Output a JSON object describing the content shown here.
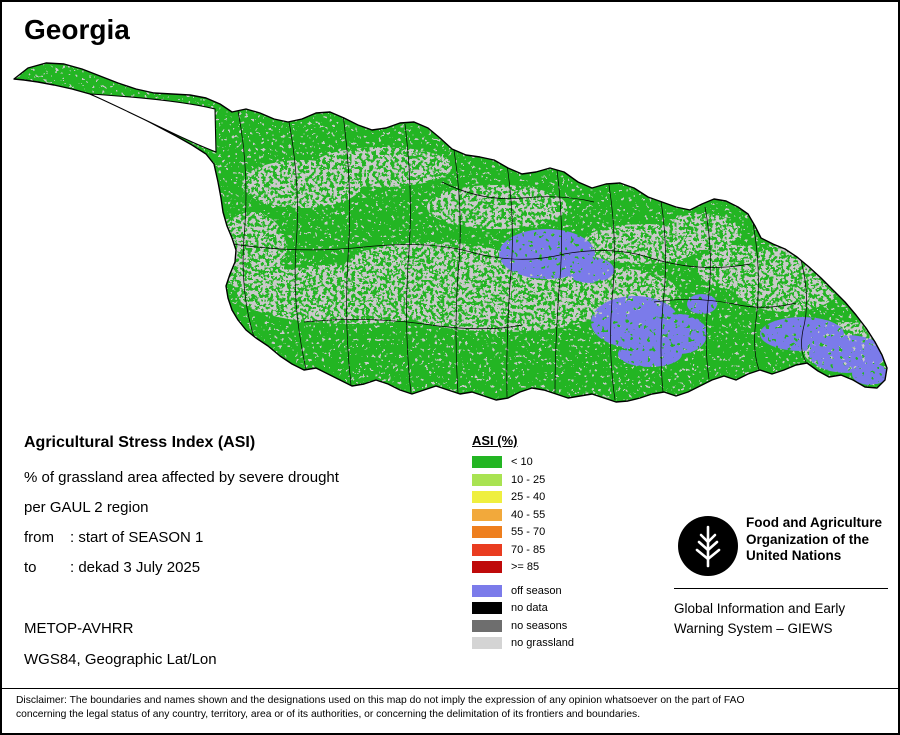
{
  "header": {
    "title": "Georgia"
  },
  "map": {
    "colors": {
      "vegetation": "#23b523",
      "no_grassland": "#c9c9c9",
      "off_season": "#7b7bea",
      "boundary": "#000000",
      "water": "#ffffff"
    }
  },
  "info": {
    "heading": "Agricultural Stress Index (ASI)",
    "description_line1": "% of grassland area affected by severe drought",
    "description_line2": "per GAUL 2 region",
    "from_label": "from",
    "from_value": ": start of SEASON 1",
    "to_label": "to",
    "to_value": ": dekad 3 July 2025",
    "sensor": "METOP-AVHRR",
    "projection": "WGS84, Geographic Lat/Lon"
  },
  "legend": {
    "title": "ASI (%)",
    "classes": [
      {
        "label": "< 10",
        "color": "#23b523"
      },
      {
        "label": "10 - 25",
        "color": "#a9e352"
      },
      {
        "label": "25 - 40",
        "color": "#efef3f"
      },
      {
        "label": "40 - 55",
        "color": "#f2a93b"
      },
      {
        "label": "55 - 70",
        "color": "#ee7f1e"
      },
      {
        "label": "70 - 85",
        "color": "#e93c20"
      },
      {
        "label": ">= 85",
        "color": "#bf0a0a"
      }
    ],
    "extras": [
      {
        "label": "off season",
        "color": "#7b7bea"
      },
      {
        "label": "no data",
        "color": "#000000"
      },
      {
        "label": "no seasons",
        "color": "#6e6e6e"
      },
      {
        "label": "no grassland",
        "color": "#d4d4d4"
      }
    ]
  },
  "footer": {
    "fao_lines": [
      "Food and Agriculture",
      "Organization of the",
      "United Nations"
    ],
    "giews_lines": [
      "Global Information and Early",
      "Warning System – GIEWS"
    ],
    "disclaimer_lines": [
      "Disclaimer: The boundaries and names shown and the designations used on this map do not imply the expression of any opinion whatsoever on the part of FAO",
      "concerning the legal status of any country, territory, area or of its authorities, or concerning the delimitation of its frontiers and boundaries."
    ]
  }
}
